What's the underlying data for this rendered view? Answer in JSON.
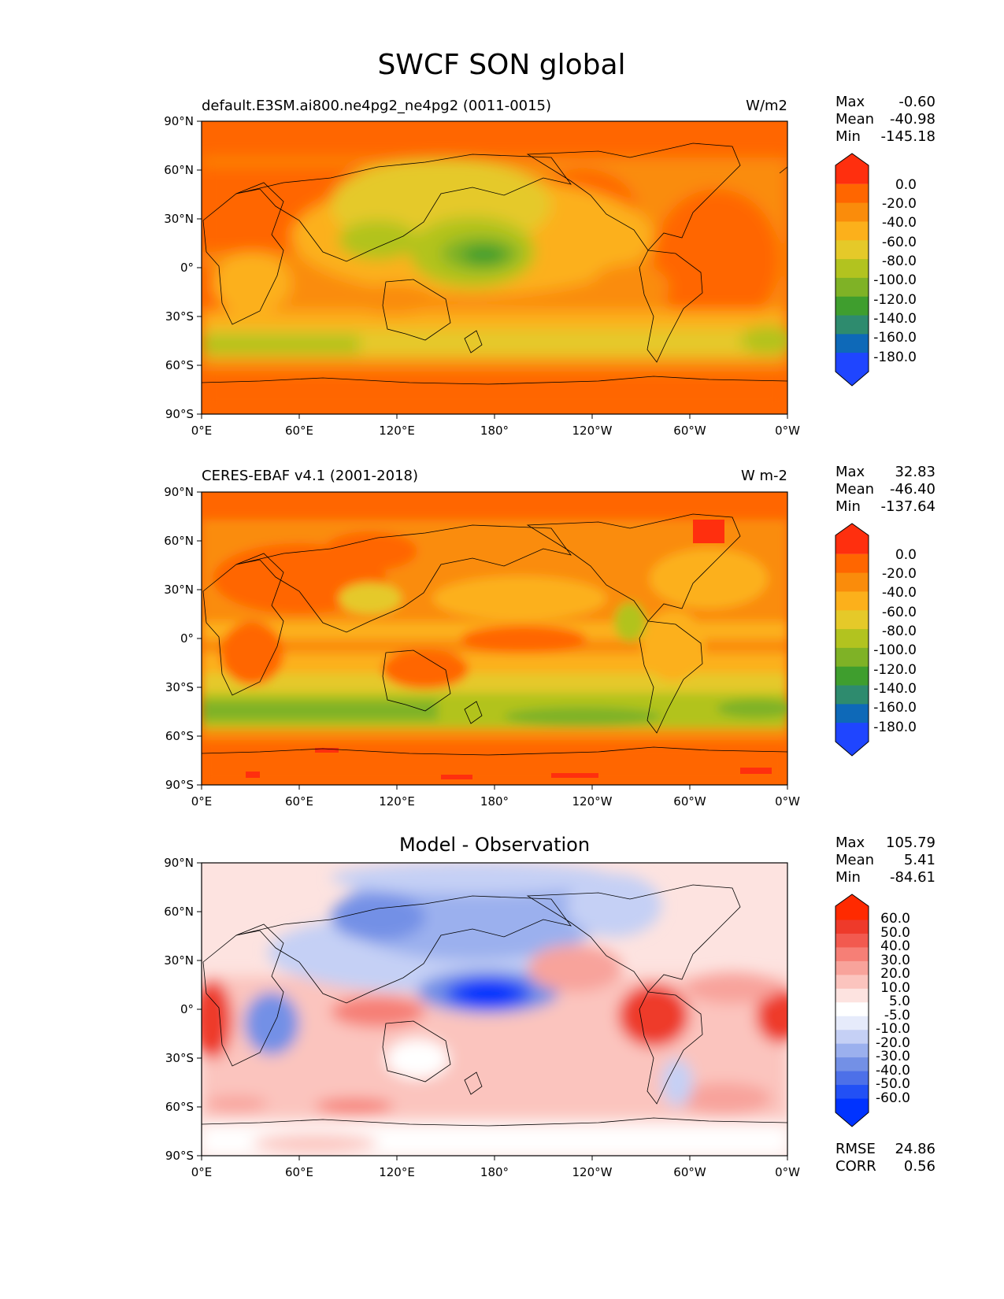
{
  "figure": {
    "title": "SWCF SON global"
  },
  "axes": {
    "lon_ticks": [
      "0°E",
      "60°E",
      "120°E",
      "180°",
      "120°W",
      "60°W",
      "0°W"
    ],
    "lat_ticks": [
      "90°N",
      "60°N",
      "30°N",
      "0°",
      "30°S",
      "60°S",
      "90°S"
    ]
  },
  "colors": {
    "abs_levels": [
      "#1f45ff",
      "#0e69b8",
      "#2e8b6e",
      "#3f9e2e",
      "#7fb226",
      "#b2c31f",
      "#e5c929",
      "#fcb01b",
      "#fa8c0b",
      "#ff6600",
      "#ff2f0e"
    ],
    "diff_levels": [
      "#0033ff",
      "#2250f5",
      "#4d70e8",
      "#7390e6",
      "#9bb0ee",
      "#c5d0f5",
      "#e6ebfb",
      "#ffffff",
      "#fde3e0",
      "#fbc4be",
      "#f8a39b",
      "#f67f76",
      "#f25a4f",
      "#ee3a2a",
      "#ff2a00"
    ]
  },
  "panels": [
    {
      "id": "test",
      "left_label": "default.E3SM.ai800.ne4pg2_ne4pg2 (0011-0015)",
      "right_label": "W/m2",
      "stats": {
        "max_label": "Max",
        "max": "-0.60",
        "mean_label": "Mean",
        "mean": "-40.98",
        "min_label": "Min",
        "min": "-145.18"
      },
      "colorbar_ticks": [
        "0.0",
        "-20.0",
        "-40.0",
        "-60.0",
        "-80.0",
        "-100.0",
        "-120.0",
        "-140.0",
        "-160.0",
        "-180.0"
      ]
    },
    {
      "id": "reference",
      "left_label": "CERES-EBAF v4.1 (2001-2018)",
      "right_label": "W m-2",
      "stats": {
        "max_label": "Max",
        "max": "32.83",
        "mean_label": "Mean",
        "mean": "-46.40",
        "min_label": "Min",
        "min": "-137.64"
      },
      "colorbar_ticks": [
        "0.0",
        "-20.0",
        "-40.0",
        "-60.0",
        "-80.0",
        "-100.0",
        "-120.0",
        "-140.0",
        "-160.0",
        "-180.0"
      ]
    },
    {
      "id": "difference",
      "title": "Model - Observation",
      "stats": {
        "max_label": "Max",
        "max": "105.79",
        "mean_label": "Mean",
        "mean": "5.41",
        "min_label": "Min",
        "min": "-84.61"
      },
      "colorbar_ticks": [
        "60.0",
        "50.0",
        "40.0",
        "30.0",
        "20.0",
        "10.0",
        "5.0",
        "-5.0",
        "-10.0",
        "-20.0",
        "-30.0",
        "-40.0",
        "-50.0",
        "-60.0"
      ],
      "extra_stats": {
        "rmse_label": "RMSE",
        "rmse": "24.86",
        "corr_label": "CORR",
        "corr": "0.56"
      }
    }
  ]
}
